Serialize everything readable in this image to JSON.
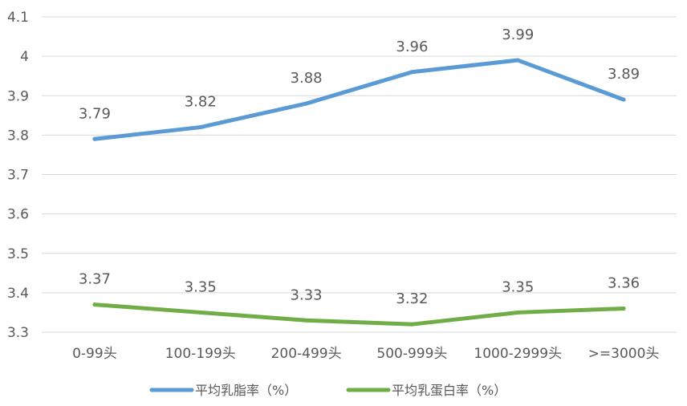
{
  "chart_data": {
    "type": "line",
    "categories": [
      "0-99头",
      "100-199头",
      "200-499头",
      "500-999头",
      "1000-2999头",
      ">=3000头"
    ],
    "series": [
      {
        "name": "平均乳脂率（%）",
        "values": [
          3.79,
          3.82,
          3.88,
          3.96,
          3.99,
          3.89
        ],
        "labels": [
          "3.79",
          "3.82",
          "3.88",
          "3.96",
          "3.99",
          "3.89"
        ],
        "color": "#5b9bd5"
      },
      {
        "name": "平均乳蛋白率（%）",
        "values": [
          3.37,
          3.35,
          3.33,
          3.32,
          3.35,
          3.36
        ],
        "labels": [
          "3.37",
          "3.35",
          "3.33",
          "3.32",
          "3.35",
          "3.36"
        ],
        "color": "#70ad47"
      }
    ],
    "ylim": [
      3.3,
      4.1
    ],
    "yticks": [
      "3.3",
      "3.4",
      "3.5",
      "3.6",
      "3.7",
      "3.8",
      "3.9",
      "4",
      "4.1"
    ],
    "grid": true,
    "legend": "bottom"
  }
}
